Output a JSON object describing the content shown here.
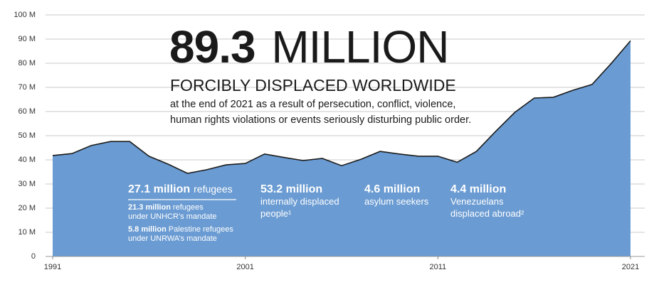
{
  "chart_data": {
    "type": "area",
    "headline": {
      "number": "89.3",
      "unit": "MILLION"
    },
    "subtitle": "FORCIBLY DISPLACED WORLDWIDE",
    "description": [
      "at the end of 2021 as a result of persecution, conflict, violence,",
      "human rights violations or events seriously disturbing public order."
    ],
    "x": [
      1991,
      1992,
      1993,
      1994,
      1995,
      1996,
      1997,
      1998,
      1999,
      2000,
      2001,
      2002,
      2003,
      2004,
      2005,
      2006,
      2007,
      2008,
      2009,
      2010,
      2011,
      2012,
      2013,
      2014,
      2015,
      2016,
      2017,
      2018,
      2019,
      2020,
      2021
    ],
    "values": [
      41.8,
      42.6,
      45.9,
      47.6,
      47.6,
      41.5,
      38.2,
      34.4,
      35.9,
      37.9,
      38.5,
      42.4,
      41,
      39.7,
      40.6,
      37.6,
      40.2,
      43.5,
      42.4,
      41.5,
      41.5,
      39,
      43.5,
      51.8,
      59.7,
      65.6,
      65.9,
      68.8,
      71.2,
      79.9,
      89.3
    ],
    "color": "#6a9bd2",
    "line_color": "#1c1c1c",
    "xlim": [
      1991,
      2021
    ],
    "xticks": [
      1991,
      2001,
      2011,
      2021
    ],
    "ylim": [
      0,
      100
    ],
    "yticks": [
      0,
      {
        "value": 10,
        "label": "10 M"
      },
      {
        "value": 20,
        "label": "20 M"
      },
      {
        "value": 30,
        "label": "30 M"
      },
      {
        "value": 40,
        "label": "40 M"
      },
      {
        "value": 50,
        "label": "50 M"
      },
      {
        "value": 60,
        "label": "60 M"
      },
      {
        "value": 70,
        "label": "70 M"
      },
      {
        "value": 80,
        "label": "80 M"
      },
      {
        "value": 90,
        "label": "90 M"
      },
      {
        "value": 100,
        "label": "100 M"
      }
    ],
    "grid": true,
    "stats": [
      {
        "value": "27.1 million",
        "label": [
          "refugees"
        ],
        "details": [
          {
            "value": "21.3 million",
            "label": [
              "refugees",
              "under UNHCR’s mandate"
            ]
          },
          {
            "value": "5.8 million",
            "label": [
              "Palestine refugees",
              "under UNRWA’s mandate"
            ]
          }
        ]
      },
      {
        "value": "53.2 million",
        "label": [
          "internally displaced",
          "people¹"
        ]
      },
      {
        "value": "4.6 million",
        "label": [
          "asylum seekers"
        ]
      },
      {
        "value": "4.4 million",
        "label": [
          "Venezuelans",
          "displaced abroad²"
        ]
      }
    ]
  }
}
